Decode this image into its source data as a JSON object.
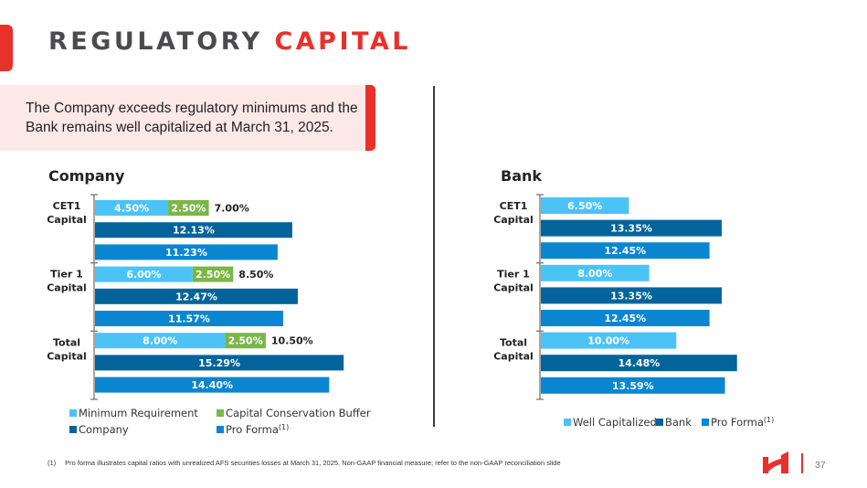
{
  "header": {
    "title_part1": "REGULATORY",
    "title_part2": "CAPITAL"
  },
  "callout": {
    "text": "The Company exceeds regulatory minimums and the Bank remains well capitalized at March 31, 2025."
  },
  "colors": {
    "accent_red": "#e8312a",
    "light_blue": "#4cc3f5",
    "green": "#7ab648",
    "dark_blue": "#02649a",
    "mid_blue": "#0a86d0"
  },
  "chart_data": [
    {
      "type": "bar",
      "orientation": "horizontal",
      "title": "Company",
      "categories": [
        "CET1 Capital",
        "Tier 1 Capital",
        "Total Capital"
      ],
      "series": [
        {
          "name": "Minimum Requirement",
          "values": [
            4.5,
            6.0,
            8.0
          ],
          "labels": [
            "4.50%",
            "6.00%",
            "8.00%"
          ],
          "stack": "req",
          "color": "#4cc3f5"
        },
        {
          "name": "Capital Conservation Buffer",
          "values": [
            2.5,
            2.5,
            2.5
          ],
          "labels": [
            "2.50%",
            "2.50%",
            "2.50%"
          ],
          "stack": "req",
          "color": "#7ab648"
        },
        {
          "name": "Company",
          "values": [
            12.13,
            12.47,
            15.29
          ],
          "labels": [
            "12.13%",
            "12.47%",
            "15.29%"
          ],
          "color": "#02649a"
        },
        {
          "name": "Pro Forma(1)",
          "values": [
            11.23,
            11.57,
            14.4
          ],
          "labels": [
            "11.23%",
            "11.57%",
            "14.40%"
          ],
          "color": "#0a86d0"
        }
      ],
      "stack_totals": [
        "7.00%",
        "8.50%",
        "10.50%"
      ],
      "legend": [
        {
          "label": "Minimum Requirement",
          "sup": "",
          "color": "#4cc3f5"
        },
        {
          "label": "Capital Conservation Buffer",
          "sup": "",
          "color": "#7ab648"
        },
        {
          "label": "Company",
          "sup": "",
          "color": "#02649a"
        },
        {
          "label": "Pro Forma",
          "sup": "(1)",
          "color": "#0a86d0"
        }
      ],
      "legend_position": "bottom",
      "xlim": [
        0,
        16
      ],
      "grid": false
    },
    {
      "type": "bar",
      "orientation": "horizontal",
      "title": "Bank",
      "categories": [
        "CET1 Capital",
        "Tier 1 Capital",
        "Total Capital"
      ],
      "series": [
        {
          "name": "Well Capitalized",
          "values": [
            6.5,
            8.0,
            10.0
          ],
          "labels": [
            "6.50%",
            "8.00%",
            "10.00%"
          ],
          "color": "#4cc3f5"
        },
        {
          "name": "Bank",
          "values": [
            13.35,
            13.35,
            14.48
          ],
          "labels": [
            "13.35%",
            "13.35%",
            "14.48%"
          ],
          "color": "#02649a"
        },
        {
          "name": "Pro Forma(1)",
          "values": [
            12.45,
            12.45,
            13.59
          ],
          "labels": [
            "12.45%",
            "12.45%",
            "13.59%"
          ],
          "color": "#0a86d0"
        }
      ],
      "legend": [
        {
          "label": "Well Capitalized",
          "sup": "",
          "color": "#4cc3f5"
        },
        {
          "label": "Bank",
          "sup": "",
          "color": "#02649a"
        },
        {
          "label": "Pro Forma",
          "sup": "(1)",
          "color": "#0a86d0"
        }
      ],
      "legend_position": "bottom",
      "xlim": [
        0,
        15
      ],
      "grid": false
    }
  ],
  "footnote": {
    "number": "(1)",
    "text": "Pro forma illustrates capital ratios with unrealized AFS securities losses at March 31, 2025. Non-GAAP financial measure; refer to the non-GAAP reconciliation slide"
  },
  "footer": {
    "page_number": "37",
    "logo_icon": "company-logo-icon"
  }
}
